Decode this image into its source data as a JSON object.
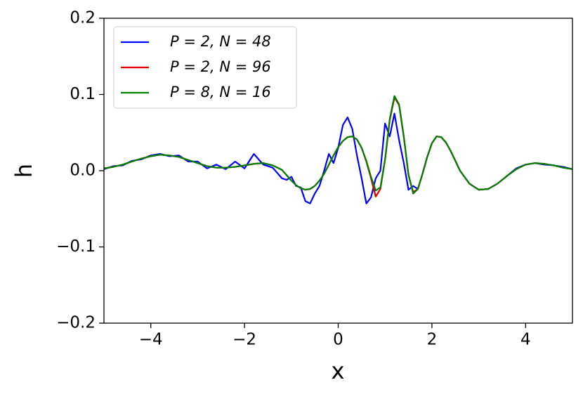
{
  "chart_data": {
    "type": "line",
    "xlabel": "x",
    "ylabel": "h",
    "x": [
      -5,
      -4.8,
      -4.6,
      -4.4,
      -4.2,
      -4,
      -3.8,
      -3.6,
      -3.4,
      -3.2,
      -3,
      -2.8,
      -2.6,
      -2.4,
      -2.2,
      -2,
      -1.8,
      -1.6,
      -1.4,
      -1.2,
      -1.1,
      -1.0,
      -0.9,
      -0.8,
      -0.7,
      -0.6,
      -0.5,
      -0.4,
      -0.3,
      -0.2,
      -0.1,
      0,
      0.1,
      0.2,
      0.3,
      0.4,
      0.5,
      0.6,
      0.7,
      0.8,
      0.9,
      1.0,
      1.1,
      1.2,
      1.3,
      1.4,
      1.5,
      1.6,
      1.7,
      1.8,
      1.9,
      2.0,
      2.1,
      2.2,
      2.3,
      2.4,
      2.5,
      2.6,
      2.8,
      3.0,
      3.2,
      3.4,
      3.6,
      3.8,
      4.0,
      4.2,
      4.4,
      4.6,
      4.8,
      5.0
    ],
    "series": [
      {
        "name": "P = 2, N = 48",
        "color": "#0000ff",
        "values": [
          0.002,
          0.006,
          0.007,
          0.013,
          0.015,
          0.02,
          0.022,
          0.019,
          0.02,
          0.012,
          0.012,
          0.003,
          0.008,
          0.002,
          0.012,
          0.003,
          0.022,
          0.008,
          0.004,
          -0.01,
          -0.012,
          -0.008,
          -0.02,
          -0.022,
          -0.04,
          -0.043,
          -0.03,
          -0.02,
          0.0,
          0.022,
          0.01,
          0.03,
          0.06,
          0.07,
          0.055,
          0.02,
          -0.01,
          -0.043,
          -0.035,
          -0.01,
          0.0,
          0.062,
          0.045,
          0.075,
          0.04,
          0.01,
          -0.025,
          -0.02,
          -0.024,
          -0.004,
          0.018,
          0.036,
          0.045,
          0.044,
          0.037,
          0.026,
          0.013,
          0.0,
          -0.017,
          -0.025,
          -0.024,
          -0.017,
          -0.007,
          0.003,
          0.008,
          0.01,
          0.008,
          0.007,
          0.005,
          0.002
        ]
      },
      {
        "name": "P = 2, N = 96",
        "color": "#e00000",
        "values": [
          0.003,
          0.005,
          0.008,
          0.012,
          0.016,
          0.019,
          0.021,
          0.02,
          0.018,
          0.014,
          0.01,
          0.006,
          0.004,
          0.004,
          0.005,
          0.007,
          0.009,
          0.01,
          0.007,
          0.001,
          -0.006,
          -0.013,
          -0.019,
          -0.023,
          -0.025,
          -0.024,
          -0.02,
          -0.013,
          -0.004,
          0.008,
          0.02,
          0.031,
          0.039,
          0.044,
          0.045,
          0.041,
          0.03,
          0.012,
          -0.01,
          -0.034,
          -0.024,
          0.014,
          0.066,
          0.096,
          0.086,
          0.044,
          -0.006,
          -0.028,
          -0.024,
          -0.004,
          0.018,
          0.036,
          0.045,
          0.044,
          0.037,
          0.026,
          0.013,
          0.0,
          -0.017,
          -0.025,
          -0.024,
          -0.017,
          -0.007,
          0.002,
          0.008,
          0.01,
          0.009,
          0.007,
          0.004,
          0.002
        ]
      },
      {
        "name": "P = 8, N = 16",
        "color": "#008000",
        "values": [
          0.003,
          0.005,
          0.008,
          0.012,
          0.016,
          0.019,
          0.021,
          0.02,
          0.018,
          0.014,
          0.01,
          0.006,
          0.004,
          0.004,
          0.005,
          0.007,
          0.009,
          0.01,
          0.007,
          0.001,
          -0.006,
          -0.013,
          -0.019,
          -0.023,
          -0.025,
          -0.024,
          -0.02,
          -0.013,
          -0.004,
          0.008,
          0.02,
          0.031,
          0.039,
          0.044,
          0.045,
          0.041,
          0.03,
          0.013,
          -0.008,
          -0.026,
          -0.022,
          0.015,
          0.068,
          0.098,
          0.087,
          0.045,
          -0.005,
          -0.03,
          -0.024,
          -0.004,
          0.018,
          0.036,
          0.045,
          0.044,
          0.037,
          0.026,
          0.013,
          0.0,
          -0.017,
          -0.025,
          -0.024,
          -0.017,
          -0.007,
          0.002,
          0.008,
          0.01,
          0.009,
          0.007,
          0.004,
          0.002
        ]
      }
    ],
    "xlim": [
      -5,
      5
    ],
    "xticks": [
      {
        "value": -4,
        "label": "−4"
      },
      {
        "value": -2,
        "label": "−2"
      },
      0,
      2,
      4
    ],
    "ylim": [
      -0.2,
      0.2
    ],
    "yticks": [
      {
        "value": -0.2,
        "label": "−0.2"
      },
      {
        "value": -0.1,
        "label": "−0.1"
      },
      {
        "value": 0,
        "label": "0.0"
      },
      0.1,
      0.2
    ],
    "grid": false,
    "legend": "upper left"
  }
}
